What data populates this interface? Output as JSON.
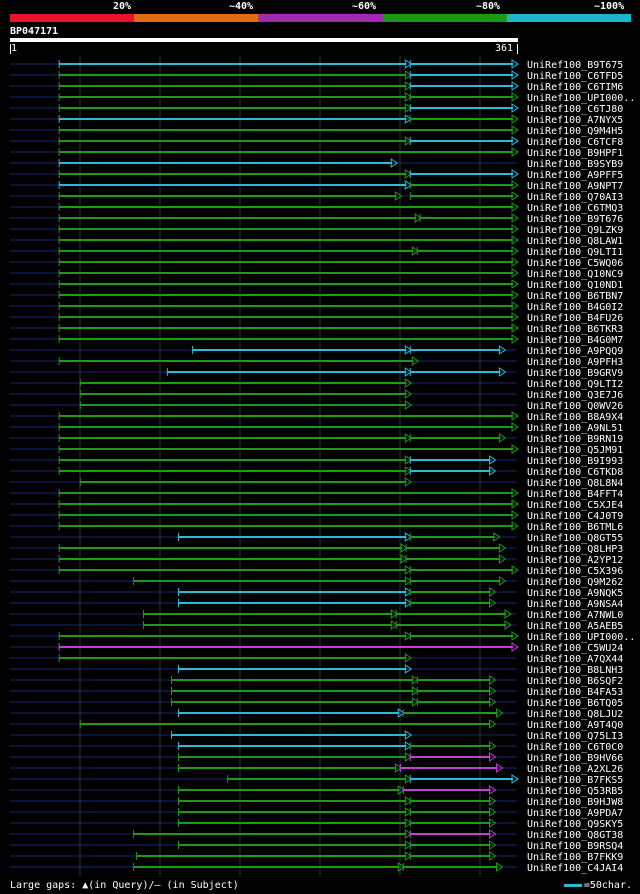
{
  "legend": {
    "labels": [
      "20%",
      "~40%",
      "~60%",
      "~80%",
      "~100%"
    ],
    "colors": [
      "#e8132b",
      "#e36b13",
      "#a02bb0",
      "#1a9a13",
      "#1bb7c7"
    ]
  },
  "query": {
    "title": "BP047171",
    "start": "1",
    "end": "361"
  },
  "footer": {
    "gaps_text": "Large gaps: ▲(in Query)/— (in Subject)",
    "scale_text": "=50char."
  },
  "colors": {
    "background": "#000000",
    "navy": "#1c2472",
    "grid": "#2a3a2a",
    "green": "#1f9a16",
    "cyan": "#28bcd6",
    "magenta": "#c23fd0"
  },
  "chart_data": {
    "type": "table",
    "query_length": 361,
    "hits": [
      {
        "name": "UniRef100_B9T675",
        "segments": [
          {
            "from": 35,
            "to": 285,
            "color": "cyan"
          },
          {
            "from": 285,
            "to": 361,
            "color": "cyan"
          }
        ]
      },
      {
        "name": "UniRef100_C6TFD5",
        "segments": [
          {
            "from": 35,
            "to": 285,
            "color": "green"
          },
          {
            "from": 285,
            "to": 361,
            "color": "cyan"
          }
        ]
      },
      {
        "name": "UniRef100_C6TIM6",
        "segments": [
          {
            "from": 35,
            "to": 285,
            "color": "green"
          },
          {
            "from": 285,
            "to": 361,
            "color": "cyan"
          }
        ]
      },
      {
        "name": "UniRef100_UPI000..",
        "segments": [
          {
            "from": 35,
            "to": 285,
            "color": "green"
          },
          {
            "from": 285,
            "to": 361,
            "color": "green"
          }
        ]
      },
      {
        "name": "UniRef100_C6TJ80",
        "segments": [
          {
            "from": 35,
            "to": 285,
            "color": "green"
          },
          {
            "from": 285,
            "to": 361,
            "color": "cyan"
          }
        ]
      },
      {
        "name": "UniRef100_A7NYX5",
        "segments": [
          {
            "from": 35,
            "to": 285,
            "color": "cyan"
          },
          {
            "from": 285,
            "to": 361,
            "color": "green"
          }
        ]
      },
      {
        "name": "UniRef100_Q9M4H5",
        "segments": [
          {
            "from": 35,
            "to": 361,
            "color": "green"
          }
        ]
      },
      {
        "name": "UniRef100_C6TCF8",
        "segments": [
          {
            "from": 35,
            "to": 285,
            "color": "green"
          },
          {
            "from": 285,
            "to": 361,
            "color": "cyan"
          }
        ]
      },
      {
        "name": "UniRef100_B9HPF1",
        "segments": [
          {
            "from": 35,
            "to": 361,
            "color": "green"
          }
        ]
      },
      {
        "name": "UniRef100_B9SYB9",
        "segments": [
          {
            "from": 35,
            "to": 275,
            "color": "cyan"
          }
        ]
      },
      {
        "name": "UniRef100_A9PFF5",
        "segments": [
          {
            "from": 35,
            "to": 285,
            "color": "green"
          },
          {
            "from": 285,
            "to": 361,
            "color": "cyan"
          }
        ]
      },
      {
        "name": "UniRef100_A9NPT7",
        "segments": [
          {
            "from": 35,
            "to": 285,
            "color": "cyan"
          },
          {
            "from": 285,
            "to": 361,
            "color": "green"
          }
        ]
      },
      {
        "name": "UniRef100_Q70AI3",
        "segments": [
          {
            "from": 35,
            "to": 278,
            "color": "green"
          },
          {
            "from": 285,
            "to": 361,
            "color": "green"
          }
        ]
      },
      {
        "name": "UniRef100_C6TMQ3",
        "segments": [
          {
            "from": 35,
            "to": 361,
            "color": "green"
          }
        ]
      },
      {
        "name": "UniRef100_B9T676",
        "segments": [
          {
            "from": 35,
            "to": 292,
            "color": "green"
          },
          {
            "from": 292,
            "to": 361,
            "color": "green"
          }
        ]
      },
      {
        "name": "UniRef100_Q9LZK9",
        "segments": [
          {
            "from": 35,
            "to": 361,
            "color": "green"
          }
        ]
      },
      {
        "name": "UniRef100_Q8LAW1",
        "segments": [
          {
            "from": 35,
            "to": 361,
            "color": "green"
          }
        ]
      },
      {
        "name": "UniRef100_Q9LTI1",
        "segments": [
          {
            "from": 35,
            "to": 290,
            "color": "green"
          },
          {
            "from": 290,
            "to": 361,
            "color": "green"
          }
        ]
      },
      {
        "name": "UniRef100_C5WQ06",
        "segments": [
          {
            "from": 35,
            "to": 361,
            "color": "green"
          }
        ]
      },
      {
        "name": "UniRef100_Q10NC9",
        "segments": [
          {
            "from": 35,
            "to": 361,
            "color": "green"
          }
        ]
      },
      {
        "name": "UniRef100_Q10ND1",
        "segments": [
          {
            "from": 35,
            "to": 361,
            "color": "green"
          }
        ]
      },
      {
        "name": "UniRef100_B6TBN7",
        "segments": [
          {
            "from": 35,
            "to": 361,
            "color": "green"
          }
        ]
      },
      {
        "name": "UniRef100_B4G0I2",
        "segments": [
          {
            "from": 35,
            "to": 361,
            "color": "green"
          }
        ]
      },
      {
        "name": "UniRef100_B4FU26",
        "segments": [
          {
            "from": 35,
            "to": 361,
            "color": "green"
          }
        ]
      },
      {
        "name": "UniRef100_B6TKR3",
        "segments": [
          {
            "from": 35,
            "to": 361,
            "color": "green"
          }
        ]
      },
      {
        "name": "UniRef100_B4G0M7",
        "segments": [
          {
            "from": 35,
            "to": 361,
            "color": "green"
          }
        ]
      },
      {
        "name": "UniRef100_A9PQQ9",
        "segments": [
          {
            "from": 130,
            "to": 285,
            "color": "cyan"
          },
          {
            "from": 285,
            "to": 352,
            "color": "cyan"
          }
        ]
      },
      {
        "name": "UniRef100_A9PFH3",
        "segments": [
          {
            "from": 35,
            "to": 290,
            "color": "green"
          }
        ]
      },
      {
        "name": "UniRef100_B9GRV9",
        "segments": [
          {
            "from": 112,
            "to": 285,
            "color": "cyan"
          },
          {
            "from": 285,
            "to": 352,
            "color": "cyan"
          }
        ]
      },
      {
        "name": "UniRef100_Q9LTI2",
        "segments": [
          {
            "from": 50,
            "to": 285,
            "color": "green"
          }
        ]
      },
      {
        "name": "UniRef100_Q3E7J6",
        "segments": [
          {
            "from": 50,
            "to": 285,
            "color": "green"
          }
        ]
      },
      {
        "name": "UniRef100_Q0WV26",
        "segments": [
          {
            "from": 50,
            "to": 285,
            "color": "green"
          }
        ]
      },
      {
        "name": "UniRef100_B8A9X4",
        "segments": [
          {
            "from": 35,
            "to": 361,
            "color": "green"
          }
        ]
      },
      {
        "name": "UniRef100_A9NL51",
        "segments": [
          {
            "from": 35,
            "to": 361,
            "color": "green"
          }
        ]
      },
      {
        "name": "UniRef100_B9RN19",
        "segments": [
          {
            "from": 35,
            "to": 285,
            "color": "green"
          },
          {
            "from": 285,
            "to": 352,
            "color": "green"
          }
        ]
      },
      {
        "name": "UniRef100_Q5JM91",
        "segments": [
          {
            "from": 35,
            "to": 361,
            "color": "green"
          }
        ]
      },
      {
        "name": "UniRef100_B9I993",
        "segments": [
          {
            "from": 35,
            "to": 285,
            "color": "green"
          },
          {
            "from": 285,
            "to": 345,
            "color": "cyan"
          }
        ]
      },
      {
        "name": "UniRef100_C6TKD8",
        "segments": [
          {
            "from": 35,
            "to": 285,
            "color": "green"
          },
          {
            "from": 285,
            "to": 345,
            "color": "cyan"
          }
        ]
      },
      {
        "name": "UniRef100_Q8L8N4",
        "segments": [
          {
            "from": 50,
            "to": 285,
            "color": "green"
          }
        ]
      },
      {
        "name": "UniRef100_B4FFT4",
        "segments": [
          {
            "from": 35,
            "to": 361,
            "color": "green"
          }
        ]
      },
      {
        "name": "UniRef100_C5XJE4",
        "segments": [
          {
            "from": 35,
            "to": 361,
            "color": "green"
          }
        ]
      },
      {
        "name": "UniRef100_C4J0T9",
        "segments": [
          {
            "from": 35,
            "to": 361,
            "color": "green"
          }
        ]
      },
      {
        "name": "UniRef100_B6TML6",
        "segments": [
          {
            "from": 35,
            "to": 361,
            "color": "green"
          }
        ]
      },
      {
        "name": "UniRef100_Q8GT55",
        "segments": [
          {
            "from": 120,
            "to": 285,
            "color": "cyan"
          },
          {
            "from": 285,
            "to": 348,
            "color": "green"
          }
        ]
      },
      {
        "name": "UniRef100_Q8LHP3",
        "segments": [
          {
            "from": 35,
            "to": 282,
            "color": "green"
          },
          {
            "from": 282,
            "to": 352,
            "color": "green"
          }
        ]
      },
      {
        "name": "UniRef100_A2YP12",
        "segments": [
          {
            "from": 35,
            "to": 282,
            "color": "green"
          },
          {
            "from": 282,
            "to": 352,
            "color": "green"
          }
        ]
      },
      {
        "name": "UniRef100_C5X396",
        "segments": [
          {
            "from": 35,
            "to": 285,
            "color": "green"
          },
          {
            "from": 285,
            "to": 361,
            "color": "green"
          }
        ]
      },
      {
        "name": "UniRef100_Q9M262",
        "segments": [
          {
            "from": 88,
            "to": 285,
            "color": "green"
          },
          {
            "from": 285,
            "to": 352,
            "color": "green"
          }
        ]
      },
      {
        "name": "UniRef100_A9NQK5",
        "segments": [
          {
            "from": 120,
            "to": 285,
            "color": "cyan"
          },
          {
            "from": 285,
            "to": 345,
            "color": "green"
          }
        ]
      },
      {
        "name": "UniRef100_A9NSA4",
        "segments": [
          {
            "from": 120,
            "to": 285,
            "color": "cyan"
          },
          {
            "from": 285,
            "to": 345,
            "color": "green"
          }
        ]
      },
      {
        "name": "UniRef100_A7NWL0",
        "segments": [
          {
            "from": 95,
            "to": 275,
            "color": "green"
          },
          {
            "from": 275,
            "to": 356,
            "color": "green"
          }
        ]
      },
      {
        "name": "UniRef100_A5AEB5",
        "segments": [
          {
            "from": 95,
            "to": 275,
            "color": "green"
          },
          {
            "from": 275,
            "to": 356,
            "color": "green"
          }
        ]
      },
      {
        "name": "UniRef100_UPI000..",
        "segments": [
          {
            "from": 35,
            "to": 285,
            "color": "green"
          },
          {
            "from": 285,
            "to": 361,
            "color": "green"
          }
        ]
      },
      {
        "name": "UniRef100_C5WU24",
        "segments": [
          {
            "from": 35,
            "to": 361,
            "color": "magenta"
          }
        ]
      },
      {
        "name": "UniRef100_A7QX44",
        "segments": [
          {
            "from": 35,
            "to": 285,
            "color": "green"
          }
        ]
      },
      {
        "name": "UniRef100_B8LNH3",
        "segments": [
          {
            "from": 120,
            "to": 285,
            "color": "cyan"
          }
        ]
      },
      {
        "name": "UniRef100_B6SQF2",
        "segments": [
          {
            "from": 115,
            "to": 290,
            "color": "green"
          },
          {
            "from": 290,
            "to": 345,
            "color": "green"
          }
        ]
      },
      {
        "name": "UniRef100_B4FA53",
        "segments": [
          {
            "from": 115,
            "to": 290,
            "color": "green"
          },
          {
            "from": 290,
            "to": 345,
            "color": "green"
          }
        ]
      },
      {
        "name": "UniRef100_B6TQ05",
        "segments": [
          {
            "from": 115,
            "to": 290,
            "color": "green"
          },
          {
            "from": 290,
            "to": 345,
            "color": "green"
          }
        ]
      },
      {
        "name": "UniRef100_Q8LJU2",
        "segments": [
          {
            "from": 120,
            "to": 280,
            "color": "cyan"
          },
          {
            "from": 280,
            "to": 350,
            "color": "green"
          }
        ]
      },
      {
        "name": "UniRef100_A9T4Q0",
        "segments": [
          {
            "from": 50,
            "to": 345,
            "color": "green"
          }
        ]
      },
      {
        "name": "UniRef100_Q75LI3",
        "segments": [
          {
            "from": 115,
            "to": 285,
            "color": "cyan"
          }
        ]
      },
      {
        "name": "UniRef100_C6T0C0",
        "segments": [
          {
            "from": 120,
            "to": 285,
            "color": "cyan"
          },
          {
            "from": 285,
            "to": 345,
            "color": "green"
          }
        ]
      },
      {
        "name": "UniRef100_B9HV66",
        "segments": [
          {
            "from": 120,
            "to": 285,
            "color": "green"
          },
          {
            "from": 285,
            "to": 345,
            "color": "magenta"
          }
        ]
      },
      {
        "name": "UniRef100_A2XL26",
        "segments": [
          {
            "from": 120,
            "to": 278,
            "color": "green"
          },
          {
            "from": 278,
            "to": 350,
            "color": "magenta"
          }
        ]
      },
      {
        "name": "UniRef100_B7FKS5",
        "segments": [
          {
            "from": 155,
            "to": 285,
            "color": "green"
          },
          {
            "from": 285,
            "to": 361,
            "color": "cyan"
          }
        ]
      },
      {
        "name": "UniRef100_Q53RB5",
        "segments": [
          {
            "from": 120,
            "to": 280,
            "color": "green"
          },
          {
            "from": 280,
            "to": 345,
            "color": "magenta"
          }
        ]
      },
      {
        "name": "UniRef100_B9HJW8",
        "segments": [
          {
            "from": 120,
            "to": 285,
            "color": "green"
          },
          {
            "from": 285,
            "to": 345,
            "color": "green"
          }
        ]
      },
      {
        "name": "UniRef100_A9PDA7",
        "segments": [
          {
            "from": 120,
            "to": 285,
            "color": "green"
          },
          {
            "from": 285,
            "to": 345,
            "color": "green"
          }
        ]
      },
      {
        "name": "UniRef100_Q9SKY5",
        "segments": [
          {
            "from": 120,
            "to": 285,
            "color": "green"
          },
          {
            "from": 285,
            "to": 345,
            "color": "green"
          }
        ]
      },
      {
        "name": "UniRef100_Q8GT38",
        "segments": [
          {
            "from": 88,
            "to": 285,
            "color": "green"
          },
          {
            "from": 285,
            "to": 345,
            "color": "magenta"
          }
        ]
      },
      {
        "name": "UniRef100_B9RSQ4",
        "segments": [
          {
            "from": 120,
            "to": 285,
            "color": "green"
          },
          {
            "from": 285,
            "to": 345,
            "color": "green"
          }
        ]
      },
      {
        "name": "UniRef100_B7FKK9",
        "segments": [
          {
            "from": 90,
            "to": 285,
            "color": "green"
          },
          {
            "from": 285,
            "to": 345,
            "color": "green"
          }
        ]
      },
      {
        "name": "UniRef100_C4JAI4",
        "segments": [
          {
            "from": 88,
            "to": 280,
            "color": "green"
          },
          {
            "from": 280,
            "to": 350,
            "color": "green"
          }
        ]
      }
    ]
  }
}
